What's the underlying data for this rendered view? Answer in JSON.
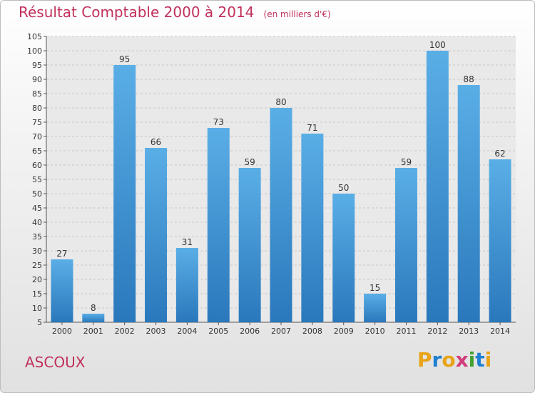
{
  "title": "Résultat Comptable 2000 à 2014",
  "subtitle": "(en milliers d'€)",
  "commune": "ASCOUX",
  "logo": {
    "letters": [
      "P",
      "r",
      "o",
      "x",
      "i",
      "t",
      "i"
    ],
    "colors": [
      "#e8a317",
      "#1f7fd0",
      "#e8a317",
      "#d23d7a",
      "#43a12f",
      "#1f7fd0",
      "#e8a317"
    ]
  },
  "colors": {
    "bar_top": "#5aaee6",
    "bar_bottom": "#2a78bc",
    "title": "#c0305a"
  },
  "chart_data": {
    "type": "bar",
    "categories": [
      "2000",
      "2001",
      "2002",
      "2003",
      "2004",
      "2005",
      "2006",
      "2007",
      "2008",
      "2009",
      "2010",
      "2011",
      "2012",
      "2013",
      "2014"
    ],
    "values": [
      27,
      8,
      95,
      66,
      31,
      73,
      59,
      80,
      71,
      50,
      15,
      59,
      100,
      88,
      62
    ],
    "ylim": [
      5,
      105
    ],
    "yticks": [
      5,
      10,
      15,
      20,
      25,
      30,
      35,
      40,
      45,
      50,
      55,
      60,
      65,
      70,
      75,
      80,
      85,
      90,
      95,
      100,
      105
    ],
    "grid": true
  }
}
